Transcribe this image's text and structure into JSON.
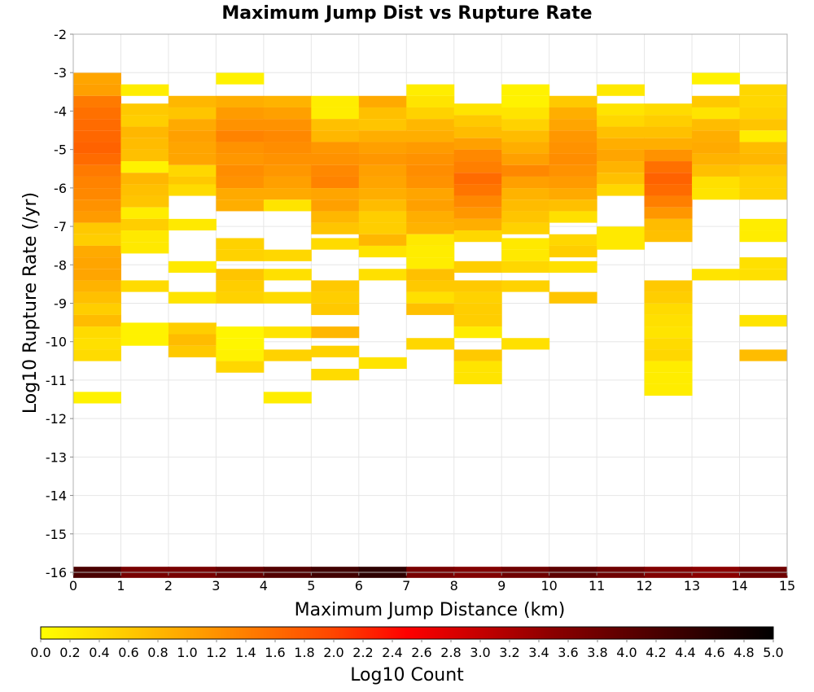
{
  "chart_data": {
    "type": "heatmap",
    "title": "Maximum Jump Dist vs Rupture Rate",
    "xlabel": "Maximum Jump Distance (km)",
    "ylabel": "Log10 Rupture Rate (/yr)",
    "xlim": [
      0,
      15
    ],
    "ylim": [
      -16,
      -2
    ],
    "x_ticks": [
      "0",
      "1",
      "2",
      "3",
      "4",
      "5",
      "6",
      "7",
      "8",
      "9",
      "10",
      "11",
      "12",
      "13",
      "14",
      "15"
    ],
    "y_ticks": [
      "-2",
      "-3",
      "-4",
      "-5",
      "-6",
      "-7",
      "-8",
      "-9",
      "-10",
      "-11",
      "-12",
      "-13",
      "-14",
      "-15",
      "-16"
    ],
    "grid": true,
    "x_bin_width": 1,
    "y_bin_width": 0.29,
    "colorbar": {
      "label": "Log10 Count",
      "min": 0.0,
      "max": 5.0,
      "ticks": [
        "0.0",
        "0.2",
        "0.4",
        "0.6",
        "0.8",
        "1.0",
        "1.2",
        "1.4",
        "1.6",
        "1.8",
        "2.0",
        "2.2",
        "2.4",
        "2.6",
        "2.8",
        "3.0",
        "3.2",
        "3.4",
        "3.6",
        "3.8",
        "4.0",
        "4.2",
        "4.4",
        "4.6",
        "4.8",
        "5.0"
      ],
      "stops": [
        {
          "v": 0.0,
          "c": "#ffff00"
        },
        {
          "v": 1.0,
          "c": "#ffa500"
        },
        {
          "v": 2.0,
          "c": "#ff4500"
        },
        {
          "v": 2.5,
          "c": "#ff0000"
        },
        {
          "v": 3.5,
          "c": "#8b0000"
        },
        {
          "v": 5.0,
          "c": "#000000"
        }
      ]
    },
    "columns": [
      {
        "x": 0,
        "rows": [
          [
            -3.15,
            1.0
          ],
          [
            -3.45,
            1.05
          ],
          [
            -3.75,
            1.45
          ],
          [
            -4.05,
            1.55
          ],
          [
            -4.35,
            1.6
          ],
          [
            -4.65,
            1.65
          ],
          [
            -4.95,
            1.7
          ],
          [
            -5.25,
            1.6
          ],
          [
            -5.55,
            1.45
          ],
          [
            -5.85,
            1.35
          ],
          [
            -6.15,
            1.3
          ],
          [
            -6.45,
            1.2
          ],
          [
            -6.75,
            1.1
          ],
          [
            -7.05,
            0.6
          ],
          [
            -7.35,
            0.55
          ],
          [
            -7.65,
            0.95
          ],
          [
            -7.95,
            1.0
          ],
          [
            -8.25,
            1.0
          ],
          [
            -8.55,
            0.85
          ],
          [
            -8.85,
            0.7
          ],
          [
            -9.15,
            0.55
          ],
          [
            -9.45,
            0.75
          ],
          [
            -9.75,
            0.4
          ],
          [
            -10.05,
            0.35
          ],
          [
            -10.35,
            0.4
          ],
          [
            -11.45,
            0.15
          ]
        ]
      },
      {
        "x": 1,
        "rows": [
          [
            -3.45,
            0.2
          ],
          [
            -3.95,
            0.6
          ],
          [
            -4.25,
            0.55
          ],
          [
            -4.55,
            0.8
          ],
          [
            -4.85,
            0.75
          ],
          [
            -5.15,
            0.7
          ],
          [
            -5.45,
            0.15
          ],
          [
            -5.75,
            0.8
          ],
          [
            -6.05,
            0.7
          ],
          [
            -6.35,
            0.65
          ],
          [
            -6.65,
            0.2
          ],
          [
            -6.95,
            0.55
          ],
          [
            -7.25,
            0.25
          ],
          [
            -7.55,
            0.25
          ],
          [
            -8.55,
            0.4
          ],
          [
            -9.65,
            0.15
          ],
          [
            -9.95,
            0.15
          ]
        ]
      },
      {
        "x": 2,
        "rows": [
          [
            -3.75,
            0.8
          ],
          [
            -4.05,
            0.65
          ],
          [
            -4.35,
            0.95
          ],
          [
            -4.65,
            1.05
          ],
          [
            -4.95,
            1.0
          ],
          [
            -5.25,
            1.0
          ],
          [
            -5.55,
            0.45
          ],
          [
            -5.85,
            0.6
          ],
          [
            -6.05,
            0.4
          ],
          [
            -6.95,
            0.25
          ],
          [
            -8.05,
            0.25
          ],
          [
            -8.85,
            0.3
          ],
          [
            -9.65,
            0.55
          ],
          [
            -9.95,
            0.75
          ],
          [
            -10.25,
            0.6
          ]
        ]
      },
      {
        "x": 3,
        "rows": [
          [
            -3.15,
            0.15
          ],
          [
            -3.75,
            0.9
          ],
          [
            -4.05,
            1.1
          ],
          [
            -4.35,
            1.2
          ],
          [
            -4.65,
            1.35
          ],
          [
            -4.95,
            1.2
          ],
          [
            -5.25,
            1.15
          ],
          [
            -5.55,
            1.25
          ],
          [
            -5.85,
            1.2
          ],
          [
            -6.15,
            0.95
          ],
          [
            -6.45,
            0.9
          ],
          [
            -7.45,
            0.5
          ],
          [
            -7.75,
            0.5
          ],
          [
            -8.25,
            0.65
          ],
          [
            -8.55,
            0.55
          ],
          [
            -8.85,
            0.5
          ],
          [
            -9.75,
            0.1
          ],
          [
            -10.05,
            0.1
          ],
          [
            -10.35,
            0.15
          ],
          [
            -10.65,
            0.45
          ]
        ]
      },
      {
        "x": 4,
        "rows": [
          [
            -3.75,
            0.85
          ],
          [
            -4.05,
            1.05
          ],
          [
            -4.35,
            1.2
          ],
          [
            -4.65,
            1.3
          ],
          [
            -4.95,
            1.25
          ],
          [
            -5.25,
            1.2
          ],
          [
            -5.55,
            1.15
          ],
          [
            -5.85,
            1.05
          ],
          [
            -6.15,
            0.95
          ],
          [
            -6.45,
            0.3
          ],
          [
            -7.75,
            0.45
          ],
          [
            -8.25,
            0.35
          ],
          [
            -8.85,
            0.4
          ],
          [
            -9.75,
            0.3
          ],
          [
            -10.35,
            0.5
          ],
          [
            -11.45,
            0.2
          ]
        ]
      },
      {
        "x": 5,
        "rows": [
          [
            -3.75,
            0.2
          ],
          [
            -4.05,
            0.2
          ],
          [
            -4.35,
            0.7
          ],
          [
            -4.65,
            0.8
          ],
          [
            -4.95,
            1.15
          ],
          [
            -5.25,
            1.2
          ],
          [
            -5.55,
            1.3
          ],
          [
            -5.85,
            1.35
          ],
          [
            -6.15,
            1.0
          ],
          [
            -6.45,
            1.05
          ],
          [
            -6.75,
            0.8
          ],
          [
            -7.05,
            0.65
          ],
          [
            -7.45,
            0.4
          ],
          [
            -8.55,
            0.6
          ],
          [
            -8.85,
            0.55
          ],
          [
            -9.15,
            0.6
          ],
          [
            -9.75,
            0.8
          ],
          [
            -10.25,
            0.5
          ],
          [
            -10.85,
            0.4
          ]
        ]
      },
      {
        "x": 6,
        "rows": [
          [
            -3.75,
            0.95
          ],
          [
            -4.05,
            0.7
          ],
          [
            -4.35,
            0.65
          ],
          [
            -4.65,
            0.9
          ],
          [
            -4.95,
            1.05
          ],
          [
            -5.25,
            1.15
          ],
          [
            -5.55,
            1.05
          ],
          [
            -5.85,
            1.0
          ],
          [
            -6.15,
            0.9
          ],
          [
            -6.45,
            0.75
          ],
          [
            -6.75,
            0.55
          ],
          [
            -7.05,
            0.55
          ],
          [
            -7.35,
            0.8
          ],
          [
            -7.65,
            0.3
          ],
          [
            -8.25,
            0.35
          ],
          [
            -10.55,
            0.3
          ]
        ]
      },
      {
        "x": 7,
        "rows": [
          [
            -3.45,
            0.2
          ],
          [
            -3.75,
            0.3
          ],
          [
            -4.05,
            0.5
          ],
          [
            -4.35,
            0.8
          ],
          [
            -4.65,
            0.9
          ],
          [
            -4.95,
            1.1
          ],
          [
            -5.25,
            1.2
          ],
          [
            -5.55,
            1.25
          ],
          [
            -5.85,
            1.2
          ],
          [
            -6.15,
            1.0
          ],
          [
            -6.45,
            1.05
          ],
          [
            -6.75,
            0.9
          ],
          [
            -7.05,
            0.85
          ],
          [
            -7.35,
            0.25
          ],
          [
            -7.65,
            0.2
          ],
          [
            -7.95,
            0.2
          ],
          [
            -8.25,
            0.7
          ],
          [
            -8.55,
            0.6
          ],
          [
            -8.85,
            0.35
          ],
          [
            -9.15,
            0.7
          ],
          [
            -10.05,
            0.45
          ]
        ]
      },
      {
        "x": 8,
        "rows": [
          [
            -3.95,
            0.3
          ],
          [
            -4.25,
            0.6
          ],
          [
            -4.55,
            0.75
          ],
          [
            -4.85,
            1.05
          ],
          [
            -5.15,
            1.3
          ],
          [
            -5.45,
            1.4
          ],
          [
            -5.75,
            1.6
          ],
          [
            -6.05,
            1.5
          ],
          [
            -6.35,
            1.3
          ],
          [
            -6.65,
            1.15
          ],
          [
            -6.95,
            0.9
          ],
          [
            -7.25,
            0.45
          ],
          [
            -8.05,
            0.55
          ],
          [
            -8.55,
            0.6
          ],
          [
            -8.85,
            0.5
          ],
          [
            -9.15,
            0.55
          ],
          [
            -9.45,
            0.55
          ],
          [
            -9.75,
            0.2
          ],
          [
            -10.35,
            0.6
          ],
          [
            -10.65,
            0.3
          ],
          [
            -10.95,
            0.3
          ]
        ]
      },
      {
        "x": 9,
        "rows": [
          [
            -3.45,
            0.15
          ],
          [
            -3.75,
            0.15
          ],
          [
            -4.05,
            0.3
          ],
          [
            -4.35,
            0.5
          ],
          [
            -4.65,
            0.75
          ],
          [
            -4.95,
            0.9
          ],
          [
            -5.25,
            1.05
          ],
          [
            -5.55,
            1.3
          ],
          [
            -5.85,
            1.05
          ],
          [
            -6.15,
            0.85
          ],
          [
            -6.45,
            0.75
          ],
          [
            -6.75,
            0.65
          ],
          [
            -7.05,
            0.5
          ],
          [
            -7.45,
            0.25
          ],
          [
            -7.75,
            0.25
          ],
          [
            -8.05,
            0.45
          ],
          [
            -8.55,
            0.5
          ],
          [
            -10.05,
            0.35
          ]
        ]
      },
      {
        "x": 10,
        "rows": [
          [
            -3.75,
            0.6
          ],
          [
            -4.05,
            0.9
          ],
          [
            -4.35,
            1.0
          ],
          [
            -4.65,
            1.15
          ],
          [
            -4.95,
            1.2
          ],
          [
            -5.25,
            1.25
          ],
          [
            -5.55,
            1.2
          ],
          [
            -5.85,
            1.1
          ],
          [
            -6.15,
            0.95
          ],
          [
            -6.45,
            0.7
          ],
          [
            -6.75,
            0.35
          ],
          [
            -7.35,
            0.45
          ],
          [
            -7.65,
            0.55
          ],
          [
            -8.05,
            0.35
          ],
          [
            -8.85,
            0.65
          ]
        ]
      },
      {
        "x": 11,
        "rows": [
          [
            -3.45,
            0.25
          ],
          [
            -3.95,
            0.3
          ],
          [
            -4.25,
            0.45
          ],
          [
            -4.55,
            0.7
          ],
          [
            -4.85,
            0.9
          ],
          [
            -5.15,
            1.0
          ],
          [
            -5.45,
            0.85
          ],
          [
            -5.75,
            0.7
          ],
          [
            -6.05,
            0.45
          ],
          [
            -7.15,
            0.25
          ],
          [
            -7.45,
            0.25
          ]
        ]
      },
      {
        "x": 12,
        "rows": [
          [
            -3.95,
            0.4
          ],
          [
            -4.25,
            0.55
          ],
          [
            -4.55,
            0.7
          ],
          [
            -4.85,
            0.9
          ],
          [
            -5.15,
            1.2
          ],
          [
            -5.45,
            1.55
          ],
          [
            -5.75,
            1.7
          ],
          [
            -6.05,
            1.6
          ],
          [
            -6.35,
            1.4
          ],
          [
            -6.65,
            1.15
          ],
          [
            -6.95,
            0.75
          ],
          [
            -7.25,
            0.7
          ],
          [
            -8.55,
            0.6
          ],
          [
            -8.85,
            0.55
          ],
          [
            -9.15,
            0.4
          ],
          [
            -9.45,
            0.35
          ],
          [
            -9.75,
            0.3
          ],
          [
            -10.05,
            0.4
          ],
          [
            -10.35,
            0.45
          ],
          [
            -10.65,
            0.2
          ],
          [
            -10.95,
            0.2
          ],
          [
            -11.25,
            0.2
          ]
        ]
      },
      {
        "x": 13,
        "rows": [
          [
            -3.15,
            0.15
          ],
          [
            -3.75,
            0.6
          ],
          [
            -4.05,
            0.3
          ],
          [
            -4.35,
            0.75
          ],
          [
            -4.65,
            0.9
          ],
          [
            -4.95,
            0.95
          ],
          [
            -5.25,
            0.85
          ],
          [
            -5.55,
            0.7
          ],
          [
            -5.85,
            0.35
          ],
          [
            -6.15,
            0.3
          ],
          [
            -8.25,
            0.3
          ]
        ]
      },
      {
        "x": 14,
        "rows": [
          [
            -3.45,
            0.45
          ],
          [
            -3.75,
            0.45
          ],
          [
            -4.05,
            0.5
          ],
          [
            -4.35,
            0.65
          ],
          [
            -4.65,
            0.2
          ],
          [
            -4.95,
            0.75
          ],
          [
            -5.25,
            0.8
          ],
          [
            -5.55,
            0.6
          ],
          [
            -5.85,
            0.5
          ],
          [
            -6.15,
            0.5
          ],
          [
            -6.95,
            0.2
          ],
          [
            -7.25,
            0.2
          ],
          [
            -7.95,
            0.35
          ],
          [
            -8.25,
            0.35
          ],
          [
            -9.45,
            0.3
          ],
          [
            -10.35,
            0.75
          ]
        ]
      }
    ],
    "bottom_row": {
      "y": -16.0,
      "values": [
        4.2,
        3.7,
        3.7,
        3.9,
        4.1,
        4.3,
        4.5,
        3.7,
        3.6,
        3.8,
        4.0,
        3.8,
        3.6,
        3.5,
        3.8
      ]
    }
  }
}
